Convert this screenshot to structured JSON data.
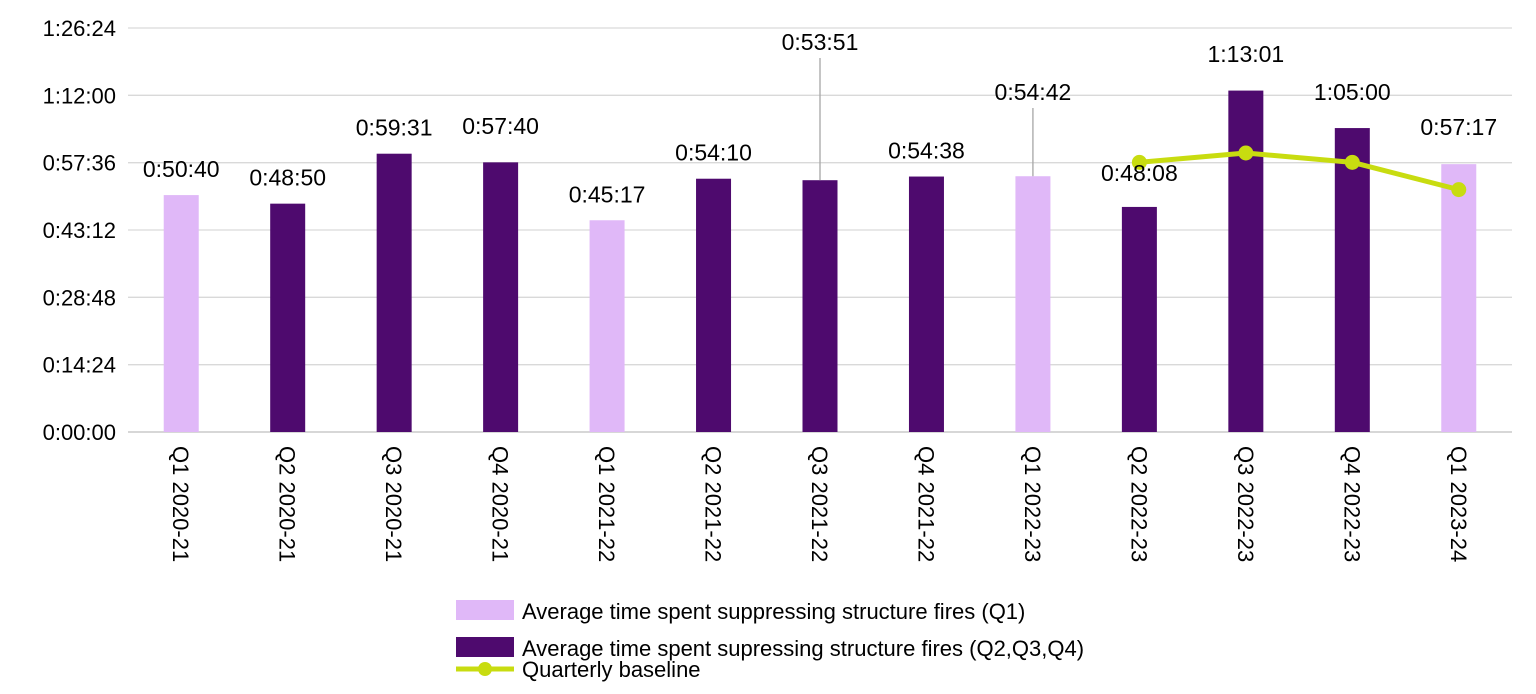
{
  "chart_data": {
    "type": "bar",
    "title": "",
    "xlabel": "",
    "ylabel": "",
    "ylim_seconds": [
      0,
      5184
    ],
    "y_ticks": [
      "0:00:00",
      "0:14:24",
      "0:28:48",
      "0:43:12",
      "0:57:36",
      "1:12:00",
      "1:26:24"
    ],
    "grid": true,
    "legend_position": "bottom",
    "categories": [
      "Q1 2020-21",
      "Q2 2020-21",
      "Q3 2020-21",
      "Q4 2020-21",
      "Q1 2021-22",
      "Q2 2021-22",
      "Q3 2021-22",
      "Q4 2021-22",
      "Q1 2022-23",
      "Q2 2022-23",
      "Q3 2022-23",
      "Q4 2022-23",
      "Q1 2023-24"
    ],
    "bar_labels": [
      "0:50:40",
      "0:48:50",
      "0:59:31",
      "0:57:40",
      "0:45:17",
      "0:54:10",
      "0:53:51",
      "0:54:38",
      "0:54:42",
      "0:48:08",
      "1:13:01",
      "1:05:00",
      "0:57:17"
    ],
    "bar_values_seconds": [
      3040,
      2930,
      3571,
      3460,
      2717,
      3250,
      3231,
      3278,
      3282,
      2888,
      4381,
      3900,
      3437
    ],
    "bar_group": [
      "q1",
      "other",
      "other",
      "other",
      "q1",
      "other",
      "other",
      "other",
      "q1",
      "other",
      "other",
      "other",
      "q1"
    ],
    "series": [
      {
        "name": "Average time spent suppressing structure fires (Q1)",
        "color": "#e0b8f8"
      },
      {
        "name": "Average time spent supressing structure fires (Q2,Q3,Q4)",
        "color": "#4e0a6e"
      },
      {
        "name": "Quarterly baseline",
        "color": "#c8dc10",
        "categories": [
          "Q2 2022-23",
          "Q3 2022-23",
          "Q4 2022-23",
          "Q1 2023-24"
        ],
        "values_seconds": [
          3460,
          3580,
          3460,
          3110
        ]
      }
    ]
  }
}
